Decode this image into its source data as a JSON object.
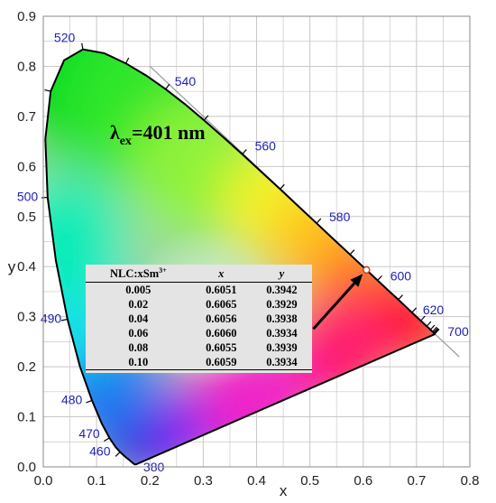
{
  "chart_data": {
    "type": "scatter",
    "xlabel": "x",
    "ylabel": "y",
    "xlim": [
      0.0,
      0.8
    ],
    "ylim": [
      0.0,
      0.9
    ],
    "xticks": [
      "0.0",
      "0.1",
      "0.2",
      "0.3",
      "0.4",
      "0.5",
      "0.6",
      "0.7",
      "0.8"
    ],
    "yticks": [
      "0.0",
      "0.1",
      "0.2",
      "0.3",
      "0.4",
      "0.5",
      "0.6",
      "0.7",
      "0.8",
      "0.9"
    ],
    "grid": true,
    "spectral_locus_labels": [
      {
        "text": "380",
        "x": 0.1741,
        "y": 0.005
      },
      {
        "text": "460",
        "x": 0.144,
        "y": 0.0297
      },
      {
        "text": "470",
        "x": 0.1241,
        "y": 0.0578
      },
      {
        "text": "480",
        "x": 0.0913,
        "y": 0.1327
      },
      {
        "text": "490",
        "x": 0.0454,
        "y": 0.295
      },
      {
        "text": "500",
        "x": 0.0082,
        "y": 0.5384
      },
      {
        "text": "520",
        "x": 0.0743,
        "y": 0.8338
      },
      {
        "text": "540",
        "x": 0.2296,
        "y": 0.7543
      },
      {
        "text": "560",
        "x": 0.3731,
        "y": 0.6245
      },
      {
        "text": "580",
        "x": 0.5125,
        "y": 0.4866
      },
      {
        "text": "600",
        "x": 0.627,
        "y": 0.3725
      },
      {
        "text": "620",
        "x": 0.6915,
        "y": 0.3083
      },
      {
        "text": "700",
        "x": 0.7347,
        "y": 0.2653
      }
    ],
    "point": {
      "x": 0.606,
      "y": 0.3934
    },
    "annotation_main": "λ",
    "annotation_sub": "ex",
    "annotation_rest": "=401 nm"
  },
  "table": {
    "headers": [
      "NLC:xSm",
      "x",
      "y"
    ],
    "header_sup": "3+",
    "rows": [
      [
        "0.005",
        "0.6051",
        "0.3942"
      ],
      [
        "0.02",
        "0.6065",
        "0.3929"
      ],
      [
        "0.04",
        "0.6056",
        "0.3938"
      ],
      [
        "0.06",
        "0.6060",
        "0.3934"
      ],
      [
        "0.08",
        "0.6055",
        "0.3939"
      ],
      [
        "0.10",
        "0.6059",
        "0.3934"
      ]
    ]
  },
  "colors": {
    "locus_outline": "#000000",
    "wavelength_labels": "#1f22b6",
    "grid": "#c8c8c8",
    "marker": "#c0392b",
    "table_bg": "#e4e4e4"
  }
}
